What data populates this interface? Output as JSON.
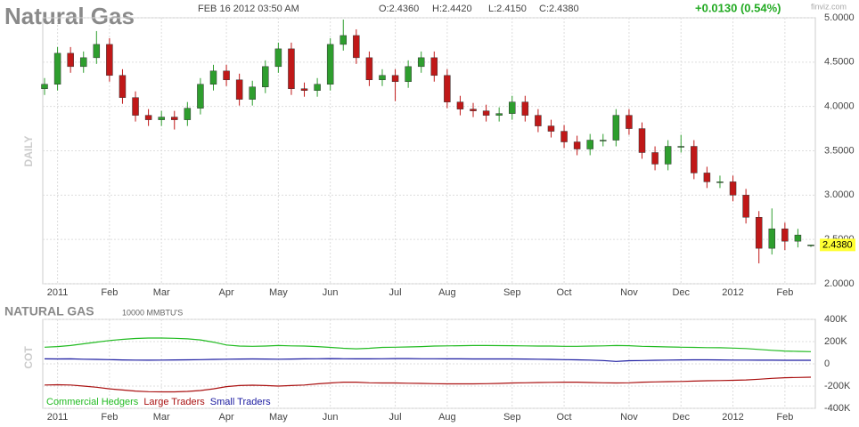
{
  "header": {
    "date": "FEB 16 2012 03:50 AM",
    "open": "O:2.4360",
    "high": "H:2.4420",
    "low": "L:2.4150",
    "close": "C:2.4380",
    "change": "+0.0130 (0.54%)",
    "logo": "finviz.com"
  },
  "chart_data": [
    {
      "type": "candlestick",
      "title": "Natural Gas",
      "y_label": "DAILY",
      "categories": [
        null,
        "2011",
        null,
        null,
        null,
        "Feb",
        null,
        null,
        null,
        "Mar",
        null,
        null,
        null,
        null,
        "Apr",
        null,
        null,
        null,
        "May",
        null,
        null,
        null,
        "Jun",
        null,
        null,
        null,
        null,
        "Jul",
        null,
        null,
        null,
        "Aug",
        null,
        null,
        null,
        null,
        "Sep",
        null,
        null,
        null,
        "Oct",
        null,
        null,
        null,
        null,
        "Nov",
        null,
        null,
        null,
        "Dec",
        null,
        null,
        null,
        "2012",
        null,
        null,
        null,
        "Feb",
        null,
        null
      ],
      "open": [
        4.2,
        4.25,
        4.6,
        4.45,
        4.55,
        4.7,
        4.35,
        4.1,
        3.9,
        3.85,
        3.88,
        3.85,
        3.98,
        4.25,
        4.4,
        4.3,
        4.08,
        4.22,
        4.45,
        4.65,
        4.2,
        4.18,
        4.25,
        4.7,
        4.8,
        4.55,
        4.3,
        4.35,
        4.28,
        4.45,
        4.55,
        4.35,
        4.05,
        3.97,
        3.95,
        3.9,
        3.92,
        4.05,
        3.9,
        3.78,
        3.72,
        3.6,
        3.52,
        3.62,
        3.62,
        3.9,
        3.75,
        3.48,
        3.35,
        3.55,
        3.55,
        3.25,
        3.15,
        3.15,
        3.0,
        2.75,
        2.4,
        2.62,
        2.48,
        2.436
      ],
      "high": [
        4.32,
        4.67,
        4.67,
        4.62,
        4.85,
        4.77,
        4.42,
        4.17,
        3.97,
        3.95,
        3.95,
        4.05,
        4.32,
        4.47,
        4.47,
        4.37,
        4.29,
        4.52,
        4.72,
        4.72,
        4.27,
        4.32,
        4.77,
        4.98,
        4.87,
        4.62,
        4.42,
        4.42,
        4.52,
        4.62,
        4.62,
        4.42,
        4.12,
        4.04,
        4.02,
        3.99,
        4.12,
        4.12,
        3.97,
        3.85,
        3.79,
        3.67,
        3.69,
        3.69,
        3.97,
        3.97,
        3.82,
        3.55,
        3.62,
        3.68,
        3.62,
        3.32,
        3.22,
        3.22,
        3.07,
        2.82,
        2.85,
        2.69,
        2.62,
        2.442
      ],
      "low": [
        4.13,
        4.18,
        4.38,
        4.38,
        4.48,
        4.28,
        4.03,
        3.83,
        3.78,
        3.78,
        3.74,
        3.78,
        3.91,
        4.18,
        4.23,
        4.01,
        4.01,
        4.15,
        4.38,
        4.13,
        4.11,
        4.11,
        4.18,
        4.63,
        4.48,
        4.23,
        4.23,
        4.06,
        4.21,
        4.38,
        4.28,
        3.98,
        3.9,
        3.88,
        3.83,
        3.83,
        3.85,
        3.83,
        3.71,
        3.65,
        3.53,
        3.45,
        3.45,
        3.55,
        3.55,
        3.68,
        3.41,
        3.28,
        3.28,
        3.48,
        3.18,
        3.08,
        3.08,
        2.93,
        2.68,
        2.23,
        2.33,
        2.38,
        2.41,
        2.415
      ],
      "close": [
        4.25,
        4.6,
        4.45,
        4.55,
        4.7,
        4.35,
        4.1,
        3.9,
        3.85,
        3.88,
        3.85,
        3.98,
        4.25,
        4.4,
        4.3,
        4.08,
        4.22,
        4.45,
        4.65,
        4.2,
        4.18,
        4.25,
        4.7,
        4.8,
        4.55,
        4.3,
        4.35,
        4.28,
        4.45,
        4.55,
        4.35,
        4.05,
        3.97,
        3.95,
        3.9,
        3.92,
        4.05,
        3.9,
        3.78,
        3.72,
        3.6,
        3.52,
        3.62,
        3.62,
        3.9,
        3.75,
        3.48,
        3.35,
        3.55,
        3.55,
        3.25,
        3.15,
        3.15,
        3.0,
        2.75,
        2.4,
        2.62,
        2.48,
        2.55,
        2.438
      ],
      "last_label": {
        "value": 2.438,
        "label": "2.4380"
      },
      "up_color": "#2e9e2e",
      "down_color": "#c01818",
      "ylim": [
        2.0,
        5.0
      ],
      "yticks": [
        {
          "value": 2.0,
          "label": "2.0000"
        },
        {
          "value": 2.5,
          "label": "2.5000"
        },
        {
          "value": 3.0,
          "label": "3.0000"
        },
        {
          "value": 3.5,
          "label": "3.5000"
        },
        {
          "value": 4.0,
          "label": "4.0000"
        },
        {
          "value": 4.5,
          "label": "4.5000"
        },
        {
          "value": 5.0,
          "label": "5.0000"
        }
      ],
      "grid": true
    },
    {
      "type": "line",
      "title": "NATURAL GAS",
      "subtitle": "10000 MMBTU'S",
      "y_label": "COT",
      "legend": "bottom-left",
      "categories": [
        null,
        "2011",
        null,
        null,
        null,
        "Feb",
        null,
        null,
        null,
        "Mar",
        null,
        null,
        null,
        null,
        "Apr",
        null,
        null,
        null,
        "May",
        null,
        null,
        null,
        "Jun",
        null,
        null,
        null,
        null,
        "Jul",
        null,
        null,
        null,
        "Aug",
        null,
        null,
        null,
        null,
        "Sep",
        null,
        null,
        null,
        "Oct",
        null,
        null,
        null,
        null,
        "Nov",
        null,
        null,
        null,
        "Dec",
        null,
        null,
        null,
        "2012",
        null,
        null,
        null,
        "Feb",
        null,
        null
      ],
      "series": [
        {
          "name": "Commercial Hedgers",
          "color": "#22bb22",
          "values": [
            150000,
            155000,
            165000,
            180000,
            195000,
            210000,
            220000,
            228000,
            232000,
            232000,
            230000,
            225000,
            215000,
            195000,
            170000,
            160000,
            158000,
            160000,
            165000,
            162000,
            160000,
            155000,
            148000,
            140000,
            135000,
            140000,
            148000,
            150000,
            152000,
            155000,
            160000,
            162000,
            163000,
            165000,
            165000,
            164000,
            163000,
            162000,
            160000,
            160000,
            158000,
            158000,
            160000,
            162000,
            165000,
            163000,
            158000,
            155000,
            152000,
            150000,
            148000,
            146000,
            145000,
            142000,
            138000,
            130000,
            122000,
            115000,
            112000,
            110000
          ]
        },
        {
          "name": "Large Traders",
          "color": "#aa1111",
          "values": [
            -190000,
            -188000,
            -190000,
            -200000,
            -210000,
            -225000,
            -235000,
            -245000,
            -250000,
            -252000,
            -252000,
            -248000,
            -240000,
            -225000,
            -205000,
            -195000,
            -192000,
            -195000,
            -200000,
            -195000,
            -190000,
            -180000,
            -172000,
            -165000,
            -165000,
            -170000,
            -172000,
            -172000,
            -174000,
            -176000,
            -178000,
            -180000,
            -180000,
            -180000,
            -178000,
            -176000,
            -172000,
            -170000,
            -168000,
            -166000,
            -165000,
            -165000,
            -168000,
            -170000,
            -172000,
            -170000,
            -165000,
            -162000,
            -160000,
            -158000,
            -155000,
            -152000,
            -150000,
            -148000,
            -145000,
            -138000,
            -130000,
            -125000,
            -122000,
            -120000
          ]
        },
        {
          "name": "Small Traders",
          "color": "#1a1aa0",
          "values": [
            45000,
            44000,
            45000,
            42000,
            40000,
            38000,
            35000,
            34000,
            33000,
            34000,
            35000,
            36000,
            38000,
            40000,
            42000,
            43000,
            44000,
            43000,
            42000,
            43000,
            45000,
            46000,
            47000,
            46000,
            45000,
            45000,
            46000,
            47000,
            47000,
            46000,
            46000,
            45000,
            45000,
            44000,
            44000,
            44000,
            44000,
            43000,
            42000,
            40000,
            38000,
            36000,
            34000,
            30000,
            22000,
            28000,
            30000,
            32000,
            34000,
            35000,
            36000,
            36000,
            35000,
            34000,
            34000,
            33000,
            33000,
            32000,
            32000,
            32000
          ]
        }
      ],
      "ylim": [
        -400000,
        400000
      ],
      "yticks": [
        {
          "value": 400000,
          "label": "400K"
        },
        {
          "value": 200000,
          "label": "200K"
        },
        0,
        {
          "value": -200000,
          "label": "-200K"
        },
        {
          "value": -400000,
          "label": "-400K"
        }
      ],
      "grid": true
    }
  ]
}
